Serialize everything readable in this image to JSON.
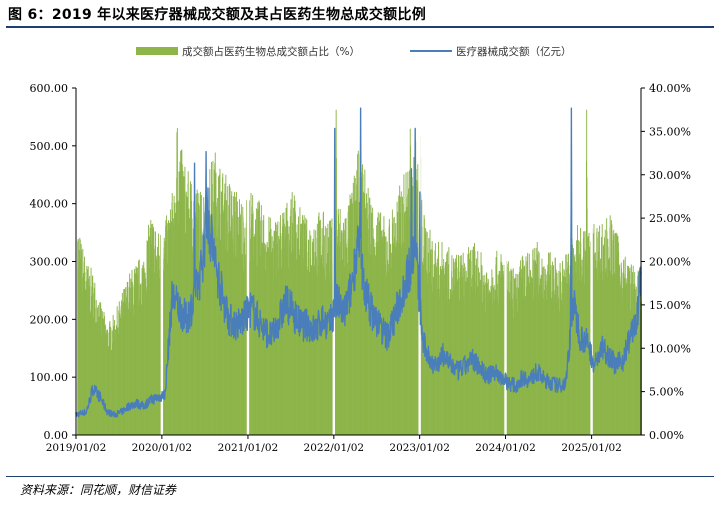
{
  "figure": {
    "title": "图 6：2019 年以来医疗器械成交额及其占医药生物总成交额比例",
    "source": "资料来源：同花顺，财信证券"
  },
  "colors": {
    "ratio_fill": "#8db54a",
    "turnover_line": "#4a7ebb",
    "rule": "#1f3f6e"
  },
  "chart_data": {
    "type": "bar+line",
    "title": "图 6：2019 年以来医疗器械成交额及其占医药生物总成交额比例",
    "legend_position": "top-center",
    "grid": false,
    "x_tick_labels": [
      "2019/01/02",
      "2020/01/02",
      "2021/01/02",
      "2022/01/02",
      "2023/01/02",
      "2024/01/02",
      "2025/01/02"
    ],
    "x_range": [
      "2019/01/02",
      "2025/07/31"
    ],
    "y_left": {
      "ticks": [
        "0.00",
        "100.00",
        "200.00",
        "300.00",
        "400.00",
        "500.00",
        "600.00"
      ],
      "min": 0,
      "max": 600
    },
    "y_right": {
      "ticks": [
        "0.00%",
        "5.00%",
        "10.00%",
        "15.00%",
        "20.00%",
        "25.00%",
        "30.00%",
        "35.00%",
        "40.00%"
      ],
      "min": 0,
      "max": 40
    },
    "series": [
      {
        "name": "成交额占医药生物总成交额占比（%）",
        "type": "bar",
        "axis": "right",
        "color": "#8db54a",
        "points": [
          [
            "2019/01/02",
            21
          ],
          [
            "2019/02/15",
            17
          ],
          [
            "2019/03/15",
            16
          ],
          [
            "2019/04/15",
            13
          ],
          [
            "2019/05/15",
            11
          ],
          [
            "2019/06/15",
            12
          ],
          [
            "2019/07/15",
            14
          ],
          [
            "2019/08/15",
            16
          ],
          [
            "2019/09/15",
            17
          ],
          [
            "2019/10/15",
            18
          ],
          [
            "2019/11/15",
            22
          ],
          [
            "2019/12/15",
            20
          ],
          [
            "2020/01/15",
            21
          ],
          [
            "2020/02/15",
            24
          ],
          [
            "2020/03/15",
            29
          ],
          [
            "2020/04/15",
            26
          ],
          [
            "2020/05/15",
            25
          ],
          [
            "2020/06/15",
            24
          ],
          [
            "2020/07/15",
            26
          ],
          [
            "2020/08/15",
            28
          ],
          [
            "2020/09/15",
            26
          ],
          [
            "2020/10/15",
            25
          ],
          [
            "2020/11/15",
            24
          ],
          [
            "2020/12/15",
            23
          ],
          [
            "2021/01/15",
            24
          ],
          [
            "2021/02/15",
            23
          ],
          [
            "2021/03/15",
            22
          ],
          [
            "2021/04/15",
            21
          ],
          [
            "2021/05/15",
            22
          ],
          [
            "2021/06/15",
            23
          ],
          [
            "2021/07/15",
            24
          ],
          [
            "2021/08/15",
            22
          ],
          [
            "2021/09/15",
            21
          ],
          [
            "2021/10/15",
            22
          ],
          [
            "2021/11/15",
            22
          ],
          [
            "2021/12/15",
            21
          ],
          [
            "2022/01/15",
            23
          ],
          [
            "2022/02/15",
            22
          ],
          [
            "2022/03/15",
            24
          ],
          [
            "2022/04/15",
            28
          ],
          [
            "2022/05/15",
            26
          ],
          [
            "2022/06/15",
            23
          ],
          [
            "2022/07/15",
            22
          ],
          [
            "2022/08/15",
            21
          ],
          [
            "2022/09/15",
            23
          ],
          [
            "2022/10/15",
            25
          ],
          [
            "2022/11/15",
            27
          ],
          [
            "2022/12/15",
            29
          ],
          [
            "2023/01/15",
            22
          ],
          [
            "2023/02/15",
            20
          ],
          [
            "2023/03/15",
            19
          ],
          [
            "2023/04/15",
            19
          ],
          [
            "2023/05/15",
            18
          ],
          [
            "2023/06/15",
            18
          ],
          [
            "2023/07/15",
            18
          ],
          [
            "2023/08/15",
            19
          ],
          [
            "2023/09/15",
            18
          ],
          [
            "2023/10/15",
            17
          ],
          [
            "2023/11/15",
            18
          ],
          [
            "2023/12/15",
            18
          ],
          [
            "2024/01/15",
            17
          ],
          [
            "2024/02/15",
            16
          ],
          [
            "2024/03/15",
            18
          ],
          [
            "2024/04/15",
            18
          ],
          [
            "2024/05/15",
            19
          ],
          [
            "2024/06/15",
            18
          ],
          [
            "2024/07/15",
            18
          ],
          [
            "2024/08/15",
            17
          ],
          [
            "2024/09/15",
            18
          ],
          [
            "2024/10/15",
            20
          ],
          [
            "2024/11/15",
            21
          ],
          [
            "2024/12/15",
            20
          ],
          [
            "2025/01/15",
            21
          ],
          [
            "2025/02/15",
            21
          ],
          [
            "2025/03/15",
            22
          ],
          [
            "2025/04/15",
            20
          ],
          [
            "2025/05/15",
            18
          ],
          [
            "2025/06/15",
            17
          ],
          [
            "2025/07/15",
            16
          ],
          [
            "2025/07/31",
            17
          ]
        ],
        "peaks": [
          [
            "2022/01/10",
            37.5
          ],
          [
            "2022/11/20",
            35.0
          ],
          [
            "2023/01/03",
            34.5
          ],
          [
            "2024/12/10",
            37.5
          ],
          [
            "2020/03/05",
            33.0
          ]
        ]
      },
      {
        "name": "医疗器械成交额（亿元）",
        "type": "line",
        "axis": "left",
        "color": "#4a7ebb",
        "points": [
          [
            "2019/01/02",
            35
          ],
          [
            "2019/02/15",
            40
          ],
          [
            "2019/03/15",
            80
          ],
          [
            "2019/04/15",
            65
          ],
          [
            "2019/05/15",
            40
          ],
          [
            "2019/06/15",
            35
          ],
          [
            "2019/07/15",
            40
          ],
          [
            "2019/08/15",
            50
          ],
          [
            "2019/09/15",
            55
          ],
          [
            "2019/10/15",
            50
          ],
          [
            "2019/11/15",
            60
          ],
          [
            "2019/12/15",
            65
          ],
          [
            "2020/01/15",
            70
          ],
          [
            "2020/02/15",
            240
          ],
          [
            "2020/03/15",
            220
          ],
          [
            "2020/04/15",
            200
          ],
          [
            "2020/05/15",
            230
          ],
          [
            "2020/06/15",
            280
          ],
          [
            "2020/07/15",
            380
          ],
          [
            "2020/08/15",
            300
          ],
          [
            "2020/09/15",
            240
          ],
          [
            "2020/10/15",
            200
          ],
          [
            "2020/11/15",
            190
          ],
          [
            "2020/12/15",
            200
          ],
          [
            "2021/01/15",
            220
          ],
          [
            "2021/02/15",
            200
          ],
          [
            "2021/03/15",
            180
          ],
          [
            "2021/04/15",
            170
          ],
          [
            "2021/05/15",
            200
          ],
          [
            "2021/06/15",
            230
          ],
          [
            "2021/07/15",
            210
          ],
          [
            "2021/08/15",
            190
          ],
          [
            "2021/09/15",
            190
          ],
          [
            "2021/10/15",
            180
          ],
          [
            "2021/11/15",
            200
          ],
          [
            "2021/12/15",
            190
          ],
          [
            "2022/01/15",
            230
          ],
          [
            "2022/02/15",
            210
          ],
          [
            "2022/03/15",
            250
          ],
          [
            "2022/04/15",
            330
          ],
          [
            "2022/05/15",
            250
          ],
          [
            "2022/06/15",
            210
          ],
          [
            "2022/07/15",
            190
          ],
          [
            "2022/08/15",
            170
          ],
          [
            "2022/09/15",
            200
          ],
          [
            "2022/10/15",
            240
          ],
          [
            "2022/11/15",
            280
          ],
          [
            "2022/12/15",
            330
          ],
          [
            "2023/01/15",
            160
          ],
          [
            "2023/02/15",
            130
          ],
          [
            "2023/03/15",
            120
          ],
          [
            "2023/04/15",
            140
          ],
          [
            "2023/05/15",
            120
          ],
          [
            "2023/06/15",
            110
          ],
          [
            "2023/07/15",
            120
          ],
          [
            "2023/08/15",
            130
          ],
          [
            "2023/09/15",
            120
          ],
          [
            "2023/10/15",
            100
          ],
          [
            "2023/11/15",
            110
          ],
          [
            "2023/12/15",
            100
          ],
          [
            "2024/01/15",
            90
          ],
          [
            "2024/02/15",
            85
          ],
          [
            "2024/03/15",
            100
          ],
          [
            "2024/04/15",
            95
          ],
          [
            "2024/05/15",
            110
          ],
          [
            "2024/06/15",
            95
          ],
          [
            "2024/07/15",
            90
          ],
          [
            "2024/08/15",
            85
          ],
          [
            "2024/09/15",
            90
          ],
          [
            "2024/10/15",
            230
          ],
          [
            "2024/11/15",
            170
          ],
          [
            "2024/12/15",
            160
          ],
          [
            "2025/01/15",
            120
          ],
          [
            "2025/02/15",
            150
          ],
          [
            "2025/03/15",
            140
          ],
          [
            "2025/04/15",
            120
          ],
          [
            "2025/05/15",
            130
          ],
          [
            "2025/06/15",
            170
          ],
          [
            "2025/07/15",
            200
          ],
          [
            "2025/07/31",
            290
          ]
        ],
        "peaks": [
          [
            "2020/05/20",
            470
          ],
          [
            "2020/07/08",
            490
          ],
          [
            "2022/01/06",
            530
          ],
          [
            "2022/04/26",
            565
          ],
          [
            "2022/11/28",
            460
          ],
          [
            "2022/12/14",
            530
          ],
          [
            "2023/01/03",
            420
          ],
          [
            "2024/10/08",
            565
          ]
        ]
      }
    ]
  }
}
